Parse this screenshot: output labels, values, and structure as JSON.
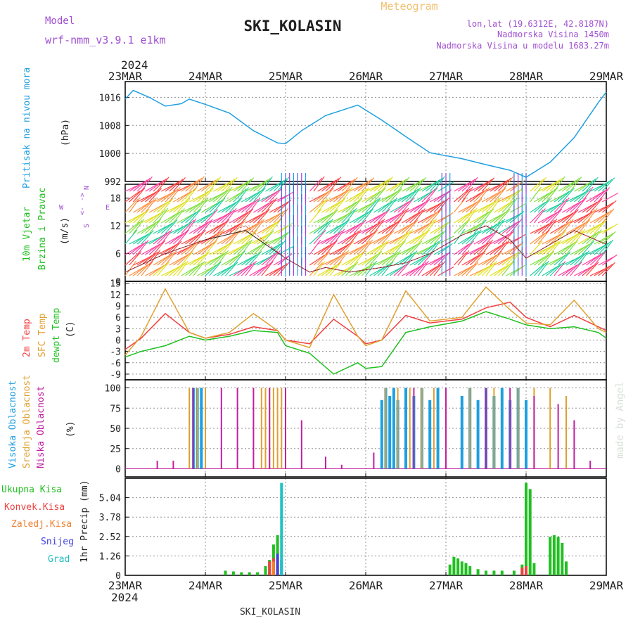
{
  "header": {
    "model_label": "Model",
    "model_name": "wrf-nmm_v3.9.1 e1km",
    "station": "SKI_KOLASIN",
    "product": "Meteogram",
    "lonlat": "lon,lat (19.6312E, 42.8187N)",
    "elev": "Nadmorska Visina 1450m",
    "elev_model": "Nadmorska Visina u modelu 1683.27m",
    "credit": "made by Angel",
    "footer_station": "SKI_KOLASIN"
  },
  "colors": {
    "pressure": "#1e9fe0",
    "temp2m": "#f04040",
    "sfc": "#e0a030",
    "dewpt": "#20c020",
    "cloud_high": "#1e9fe0",
    "cloud_mid": "#e0a030",
    "cloud_low": "#c020a0",
    "precip_total": "#20c020",
    "precip_conv": "#f04040",
    "precip_frozen": "#f08030",
    "snow": "#4040e0",
    "hail": "#20c0c0",
    "model": "#a050d0"
  },
  "time_axis": {
    "year": "2024",
    "dates": [
      "23MAR",
      "24MAR",
      "25MAR",
      "26MAR",
      "27MAR",
      "28MAR",
      "29MAR"
    ]
  },
  "chart_data": [
    {
      "type": "line",
      "panel": "pressure",
      "ylabel": "Pritisak na nivou mora",
      "unit": "(hPa)",
      "yticks": [
        992,
        1000,
        1008,
        1016
      ],
      "ylim": [
        992,
        1020.5
      ],
      "series": [
        {
          "x": [
            0,
            0.1,
            0.3,
            0.5,
            0.7,
            0.8,
            1.0,
            1.3,
            1.6,
            1.9,
            2.0,
            2.2,
            2.5,
            2.9,
            3.2,
            3.5,
            3.8,
            4.2,
            4.5,
            4.8,
            5.0,
            5.3,
            5.6,
            5.9,
            6.0
          ],
          "values": [
            1015.5,
            1018.0,
            1016.0,
            1013.5,
            1014.2,
            1015.5,
            1014.0,
            1011.5,
            1006.5,
            1003.0,
            1002.8,
            1006.5,
            1010.8,
            1013.8,
            1009.5,
            1004.8,
            1000.2,
            998.5,
            996.8,
            995.2,
            993.2,
            997.5,
            1004.5,
            1014.5,
            1017.5
          ]
        }
      ]
    },
    {
      "type": "line",
      "panel": "wind",
      "ylabel": "10m Vjetar Brzina i Pravac",
      "unit": "(m/s)",
      "legend": [
        "W",
        "<-",
        "->",
        "E",
        "S",
        "N"
      ],
      "yticks": [
        0,
        6,
        12,
        18
      ],
      "ylim": [
        0,
        21
      ],
      "series": [
        {
          "x": [
            0,
            0.5,
            1.0,
            1.5,
            2.0,
            2.3,
            2.5,
            2.8,
            3.2,
            3.5,
            3.8,
            4.2,
            4.5,
            4.8,
            5.0,
            5.3,
            5.6,
            6.0
          ],
          "values": [
            2,
            6,
            9,
            11,
            5,
            2,
            3,
            2,
            3,
            4,
            6,
            10,
            12,
            9,
            5,
            8,
            11,
            8
          ]
        },
        {
          "x": [
            0,
            0.5,
            1.0,
            1.5,
            2.0,
            2.3,
            2.5,
            2.8,
            3.2,
            3.5,
            3.8,
            4.2,
            4.5,
            4.8,
            5.0,
            5.3,
            5.6,
            6.0
          ],
          "values": [
            2,
            6,
            9,
            12,
            5,
            2,
            3,
            2,
            3,
            4,
            6,
            10,
            12,
            9,
            5,
            8,
            11,
            8
          ]
        }
      ]
    },
    {
      "type": "line",
      "panel": "temperature",
      "unit": "(C)",
      "yticks": [
        -9,
        -6,
        -3,
        0,
        3,
        6,
        9,
        12,
        15
      ],
      "ylim": [
        -10.5,
        15.5
      ],
      "series": [
        {
          "name": "2m Temp",
          "x": [
            0,
            0.2,
            0.5,
            0.8,
            1.0,
            1.3,
            1.6,
            1.9,
            2.0,
            2.3,
            2.6,
            2.9,
            3.0,
            3.2,
            3.5,
            3.8,
            4.2,
            4.5,
            4.8,
            5.0,
            5.3,
            5.6,
            5.9,
            6.0
          ],
          "values": [
            -2.5,
            0.5,
            7.0,
            2.0,
            0.5,
            1.5,
            3.5,
            2.5,
            0.0,
            -1.0,
            5.5,
            1.0,
            -1.0,
            0.0,
            6.5,
            4.5,
            5.5,
            8.5,
            10.0,
            6.0,
            3.5,
            6.5,
            3.5,
            2.5
          ]
        },
        {
          "name": "SFC Temp",
          "x": [
            0,
            0.2,
            0.5,
            0.8,
            1.0,
            1.3,
            1.6,
            1.9,
            2.0,
            2.3,
            2.6,
            2.9,
            3.0,
            3.2,
            3.5,
            3.8,
            4.2,
            4.5,
            4.8,
            5.0,
            5.3,
            5.6,
            5.9,
            6.0
          ],
          "values": [
            -4.0,
            1.0,
            13.5,
            2.0,
            0.5,
            2.0,
            7.0,
            2.5,
            0.0,
            -2.0,
            12.0,
            1.0,
            -1.5,
            0.0,
            13.0,
            5.0,
            6.0,
            14.0,
            8.0,
            4.5,
            4.0,
            10.5,
            3.0,
            2.0
          ]
        },
        {
          "name": "dewpt Temp",
          "x": [
            0,
            0.2,
            0.5,
            0.8,
            1.0,
            1.3,
            1.6,
            1.9,
            2.0,
            2.3,
            2.6,
            2.9,
            3.0,
            3.2,
            3.5,
            3.8,
            4.2,
            4.5,
            4.8,
            5.0,
            5.3,
            5.6,
            5.9,
            6.0
          ],
          "values": [
            -4.5,
            -3.0,
            -1.5,
            1.0,
            0.0,
            1.0,
            2.5,
            2.0,
            -1.5,
            -3.5,
            -9.0,
            -6.0,
            -7.5,
            -7.0,
            2.0,
            3.5,
            5.0,
            7.5,
            5.5,
            4.0,
            3.0,
            3.5,
            2.0,
            0.5
          ]
        }
      ]
    },
    {
      "type": "bar",
      "panel": "cloud",
      "unit": "(%)",
      "yticks": [
        0,
        25,
        50,
        75,
        100
      ],
      "ylim": [
        0,
        100
      ],
      "series": [
        {
          "name": "Visoka Oblacnost",
          "x": [
            0.85,
            0.9,
            0.95,
            3.2,
            3.25,
            3.3,
            3.35,
            3.4,
            3.5,
            3.6,
            3.7,
            3.8,
            3.9,
            4.2,
            4.3,
            4.4,
            4.5,
            4.6,
            4.7,
            4.8,
            4.9,
            5.0
          ],
          "values": [
            100,
            100,
            100,
            85,
            100,
            90,
            100,
            85,
            100,
            90,
            100,
            85,
            100,
            90,
            100,
            85,
            100,
            90,
            100,
            85,
            100,
            85
          ]
        },
        {
          "name": "Srednja Oblacnost",
          "x": [
            0.8,
            0.9,
            1.0,
            1.7,
            1.75,
            1.8,
            1.85,
            1.9,
            1.95,
            2.0,
            3.25,
            3.4,
            3.55,
            3.7,
            3.85,
            4.0,
            4.3,
            4.6,
            4.9,
            5.1,
            5.3,
            5.5
          ],
          "values": [
            100,
            100,
            100,
            100,
            100,
            100,
            100,
            100,
            100,
            100,
            100,
            100,
            100,
            100,
            100,
            100,
            100,
            100,
            100,
            100,
            100,
            90
          ]
        },
        {
          "name": "Niska Oblacnost",
          "x": [
            0.4,
            0.6,
            0.85,
            1.2,
            1.4,
            1.6,
            1.8,
            2.0,
            2.2,
            2.5,
            2.7,
            3.1,
            3.6,
            4.0,
            4.5,
            4.8,
            5.1,
            5.4,
            5.6,
            5.8
          ],
          "values": [
            10,
            10,
            100,
            100,
            100,
            100,
            100,
            100,
            60,
            15,
            5,
            20,
            100,
            100,
            100,
            100,
            90,
            80,
            60,
            10
          ]
        }
      ]
    },
    {
      "type": "bar",
      "panel": "precip",
      "ylabel": "1hr Precip (mm)",
      "yticks": [
        0,
        1.26,
        2.52,
        3.78,
        5.04
      ],
      "ylim": [
        0,
        6.3
      ],
      "series": [
        {
          "name": "Ukupna Kisa",
          "x": [
            1.25,
            1.35,
            1.45,
            1.55,
            1.65,
            1.75,
            1.8,
            1.85,
            1.9,
            4.05,
            4.1,
            4.15,
            4.2,
            4.25,
            4.3,
            4.4,
            4.5,
            4.6,
            4.7,
            4.85,
            4.95,
            5.0,
            5.05,
            5.1,
            5.3,
            5.35,
            5.4,
            5.45,
            5.5
          ],
          "values": [
            0.3,
            0.25,
            0.2,
            0.2,
            0.2,
            0.6,
            1.0,
            2.0,
            2.6,
            0.7,
            1.2,
            1.1,
            0.9,
            0.8,
            0.6,
            0.4,
            0.3,
            0.3,
            0.3,
            0.3,
            0.7,
            6.0,
            5.6,
            0.8,
            2.5,
            2.6,
            2.5,
            2.1,
            0.9
          ]
        },
        {
          "name": "Konvek.Kisa",
          "x": [
            1.8,
            1.85,
            4.95,
            5.0
          ],
          "values": [
            0.9,
            1.1,
            0.5,
            0.6
          ]
        },
        {
          "name": "Zaledj.Kisa",
          "x": [
            1.85,
            1.9
          ],
          "values": [
            0.9,
            0.6
          ]
        },
        {
          "name": "Snijeg",
          "x": [
            1.9,
            1.95
          ],
          "values": [
            1.4,
            1.0
          ]
        },
        {
          "name": "Grad",
          "x": [
            1.95
          ],
          "values": [
            6.0
          ]
        }
      ]
    }
  ]
}
